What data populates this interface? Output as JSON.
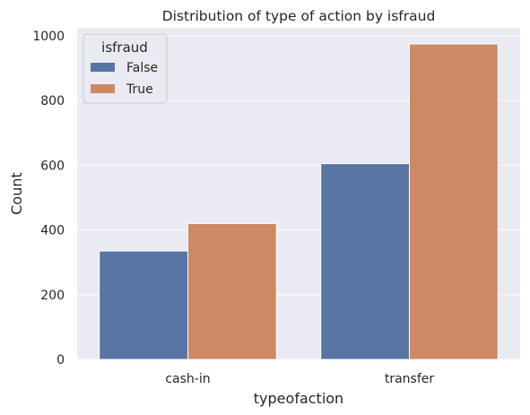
{
  "chart_data": {
    "type": "bar",
    "title": "Distribution of type of action by isfraud",
    "xlabel": "typeofaction",
    "ylabel": "Count",
    "categories": [
      "cash-in",
      "transfer"
    ],
    "series": [
      {
        "name": "False",
        "values": [
          335,
          605
        ],
        "color": "#5875a4"
      },
      {
        "name": "True",
        "values": [
          420,
          975
        ],
        "color": "#cc8963"
      }
    ],
    "ylim": [
      0,
      1025
    ],
    "yticks": [
      0,
      200,
      400,
      600,
      800,
      1000
    ],
    "grid": true,
    "background": "#eaeaf2",
    "legend": {
      "title": "isfraud",
      "placement": "top-left"
    }
  }
}
